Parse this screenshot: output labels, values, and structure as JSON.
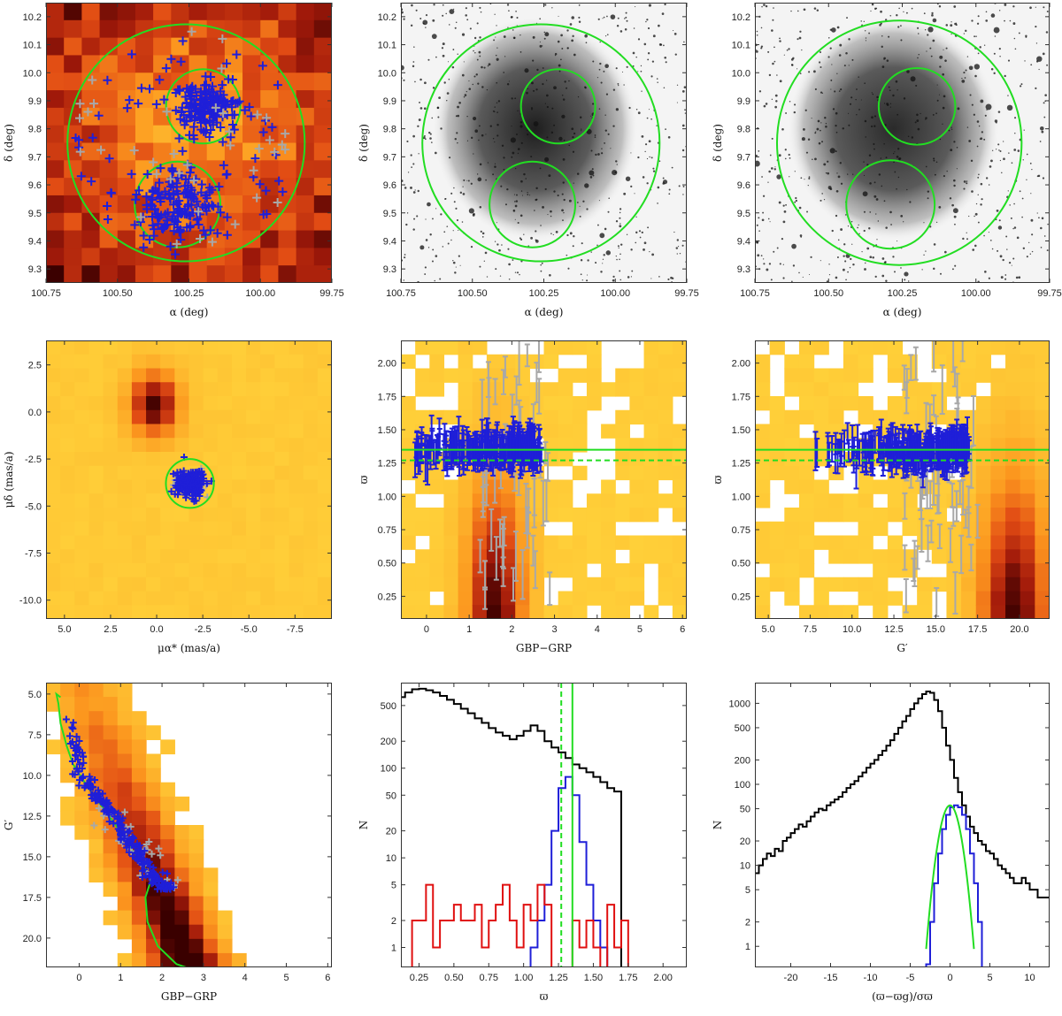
{
  "figure": {
    "panel_count": 9
  },
  "colors": {
    "member": "#1f1fd8",
    "nonmember": "#a8a8a8",
    "fit": "#22dd22",
    "hist_all": "#000000",
    "hist_members": "#1f1fd8",
    "hist_other": "#e01010",
    "heat_low": "#ffd23a",
    "heat_high": "#3a0000"
  },
  "chart_data": [
    {
      "panel": "sky-density",
      "type": "heatmap",
      "xlabel": "α (deg)",
      "ylabel": "δ (deg)",
      "xlim": [
        100.75,
        99.75
      ],
      "ylim": [
        9.25,
        10.25
      ],
      "xticks": [
        "100.75",
        "100.50",
        "100.25",
        "100.00",
        "99.75"
      ],
      "yticks": [
        "9.3",
        "9.4",
        "9.5",
        "9.6",
        "9.7",
        "9.8",
        "9.9",
        "10.0",
        "10.1",
        "10.2"
      ],
      "circles": [
        {
          "name": "whole region",
          "ra": 100.26,
          "dec": 9.75,
          "r_deg": 0.415
        },
        {
          "name": "north core",
          "ra": 100.2,
          "dec": 9.88,
          "r_deg": 0.13
        },
        {
          "name": "south core",
          "ra": 100.29,
          "dec": 9.53,
          "r_deg": 0.15
        }
      ]
    },
    {
      "panel": "sky-image-blue",
      "type": "image",
      "xlabel": "α (deg)",
      "ylabel": "δ (deg)",
      "xlim": [
        100.75,
        99.75
      ],
      "ylim": [
        9.25,
        10.25
      ],
      "xticks": [
        "100.75",
        "100.50",
        "100.25",
        "100.00",
        "99.75"
      ],
      "yticks": [
        "9.3",
        "9.4",
        "9.5",
        "9.6",
        "9.7",
        "9.8",
        "9.9",
        "10.0",
        "10.1",
        "10.2"
      ]
    },
    {
      "panel": "sky-image-red",
      "type": "image",
      "xlabel": "α (deg)",
      "ylabel": "δ (deg)",
      "xlim": [
        100.75,
        99.75
      ],
      "ylim": [
        9.25,
        10.25
      ],
      "xticks": [
        "100.75",
        "100.50",
        "100.25",
        "100.00",
        "99.75"
      ],
      "yticks": [
        "9.3",
        "9.4",
        "9.5",
        "9.6",
        "9.7",
        "9.8",
        "9.9",
        "10.0",
        "10.1",
        "10.2"
      ]
    },
    {
      "panel": "proper-motion",
      "type": "heatmap",
      "xlabel": "μα* (mas/a)",
      "ylabel": "μδ (mas/a)",
      "xlim": [
        6,
        -9.5
      ],
      "ylim": [
        -11,
        3.8
      ],
      "xticks": [
        "5.0",
        "2.5",
        "0.0",
        "-2.5",
        "-5.0",
        "-7.5"
      ],
      "yticks": [
        "2.5",
        "0.0",
        "-2.5",
        "-5.0",
        "-7.5",
        "-10.0"
      ],
      "selection_circle": {
        "pmra": -1.8,
        "pmdec": -3.8,
        "radius": 1.3
      }
    },
    {
      "panel": "parallax-vs-color",
      "type": "scatter",
      "xlabel": "GBP−GRP",
      "ylabel": "ϖ",
      "xlim": [
        -0.6,
        6.1
      ],
      "ylim": [
        0.08,
        2.17
      ],
      "xticks": [
        "0",
        "1",
        "2",
        "3",
        "4",
        "5",
        "6"
      ],
      "yticks": [
        "0.25",
        "0.50",
        "0.75",
        "1.00",
        "1.25",
        "1.50",
        "1.75",
        "2.00"
      ],
      "hlines": [
        {
          "name": "mean parallax",
          "y": 1.35,
          "style": "solid"
        },
        {
          "name": "reference",
          "y": 1.27,
          "style": "dashed"
        }
      ]
    },
    {
      "panel": "parallax-vs-magnitude",
      "type": "scatter",
      "xlabel": "G′",
      "ylabel": "ϖ",
      "xlim": [
        4.2,
        21.8
      ],
      "ylim": [
        0.08,
        2.17
      ],
      "xticks": [
        "5.0",
        "7.5",
        "10.0",
        "12.5",
        "15.0",
        "17.5",
        "20.0"
      ],
      "yticks": [
        "0.25",
        "0.50",
        "0.75",
        "1.00",
        "1.25",
        "1.50",
        "1.75",
        "2.00"
      ],
      "hlines": [
        {
          "name": "mean parallax",
          "y": 1.35,
          "style": "solid"
        },
        {
          "name": "reference",
          "y": 1.27,
          "style": "dashed"
        }
      ]
    },
    {
      "panel": "color-magnitude",
      "type": "heatmap",
      "xlabel": "GBP−GRP",
      "ylabel": "G′",
      "xlim": [
        -0.8,
        6.1
      ],
      "ylim": [
        21.8,
        4.3
      ],
      "xticks": [
        "0",
        "1",
        "2",
        "3",
        "4",
        "5",
        "6"
      ],
      "yticks": [
        "5.0",
        "7.5",
        "10.0",
        "12.5",
        "15.0",
        "17.5",
        "20.0"
      ],
      "isochrone": [
        [
          -0.45,
          5.2
        ],
        [
          -0.55,
          5.0
        ],
        [
          -0.5,
          5.6
        ],
        [
          -0.45,
          6.8
        ],
        [
          -0.3,
          8.2
        ],
        [
          -0.15,
          9.3
        ],
        [
          0.1,
          10.3
        ],
        [
          0.4,
          11.4
        ],
        [
          0.7,
          12.4
        ],
        [
          0.95,
          13.3
        ],
        [
          1.2,
          14.3
        ],
        [
          1.5,
          15.4
        ],
        [
          1.75,
          16.3
        ],
        [
          1.6,
          17.5
        ],
        [
          1.65,
          19.0
        ],
        [
          1.9,
          20.5
        ],
        [
          2.35,
          21.6
        ],
        [
          2.7,
          21.9
        ]
      ]
    },
    {
      "panel": "parallax-histogram",
      "type": "line",
      "xlabel": "ϖ",
      "ylabel": "N",
      "yscale": "log",
      "xlim": [
        0.12,
        2.17
      ],
      "ylim": [
        0.6,
        900
      ],
      "xticks": [
        "0.25",
        "0.50",
        "0.75",
        "1.00",
        "1.25",
        "1.50",
        "1.75",
        "2.00"
      ],
      "yticks": [
        "1",
        "2",
        "5",
        "10",
        "20",
        "50",
        "100",
        "200",
        "500"
      ],
      "vlines": [
        {
          "name": "mean parallax",
          "x": 1.35,
          "style": "solid"
        },
        {
          "name": "reference",
          "x": 1.27,
          "style": "dashed"
        }
      ],
      "bin_width": 0.05,
      "series": [
        {
          "name": "all stars",
          "bin_start": 0.1,
          "values": [
            620,
            700,
            760,
            770,
            740,
            700,
            640,
            580,
            520,
            460,
            410,
            360,
            320,
            280,
            250,
            230,
            210,
            230,
            260,
            300,
            260,
            200,
            170,
            150,
            130,
            110,
            100,
            90,
            80,
            70,
            60,
            55
          ]
        },
        {
          "name": "members",
          "bin_start": 1.05,
          "values": [
            1,
            2,
            5,
            20,
            60,
            80,
            50,
            15,
            5,
            2,
            1
          ]
        },
        {
          "name": "non-member",
          "bin_start": 0.15,
          "values": [
            0.6,
            2,
            2,
            5,
            1,
            2,
            2,
            3,
            2,
            2,
            3,
            1,
            2,
            3,
            5,
            2,
            1,
            3,
            2,
            5,
            3,
            0.6,
            0.6,
            0.6,
            2,
            1,
            2,
            1,
            0.6,
            3,
            1,
            2,
            0.6
          ]
        }
      ]
    },
    {
      "panel": "normalized-parallax-histogram",
      "type": "line",
      "xlabel": "(ϖ−ϖg)/σϖ",
      "ylabel": "N",
      "yscale": "log",
      "xlim": [
        -24.5,
        12.5
      ],
      "ylim": [
        0.55,
        1800
      ],
      "xticks": [
        "-20",
        "-15",
        "-10",
        "-5",
        "0",
        "5",
        "10"
      ],
      "yticks": [
        "1",
        "2",
        "5",
        "10",
        "20",
        "50",
        "100",
        "200",
        "500",
        "1000"
      ],
      "bin_width": 0.5,
      "series": [
        {
          "name": "all stars",
          "bin_start": -24.5,
          "values": [
            8,
            10,
            12,
            14,
            13,
            16,
            15,
            20,
            22,
            25,
            28,
            32,
            30,
            35,
            40,
            45,
            50,
            48,
            55,
            60,
            65,
            70,
            80,
            90,
            100,
            110,
            125,
            140,
            160,
            180,
            200,
            230,
            260,
            300,
            350,
            420,
            500,
            600,
            700,
            850,
            1000,
            1150,
            1300,
            1400,
            1350,
            1100,
            800,
            500,
            300,
            200,
            120,
            80,
            55,
            40,
            30,
            25,
            20,
            18,
            15,
            14,
            12,
            10,
            9,
            8,
            7,
            6,
            6,
            7,
            6,
            5,
            5,
            4,
            4,
            4
          ]
        },
        {
          "name": "members",
          "bin_start": -3.0,
          "values": [
            0.6,
            2,
            6,
            14,
            28,
            42,
            52,
            55,
            52,
            42,
            28,
            14,
            6,
            2
          ]
        },
        {
          "name": "gaussian fit",
          "mu": 0,
          "sigma": 1.05,
          "amplitude": 55
        }
      ]
    }
  ]
}
